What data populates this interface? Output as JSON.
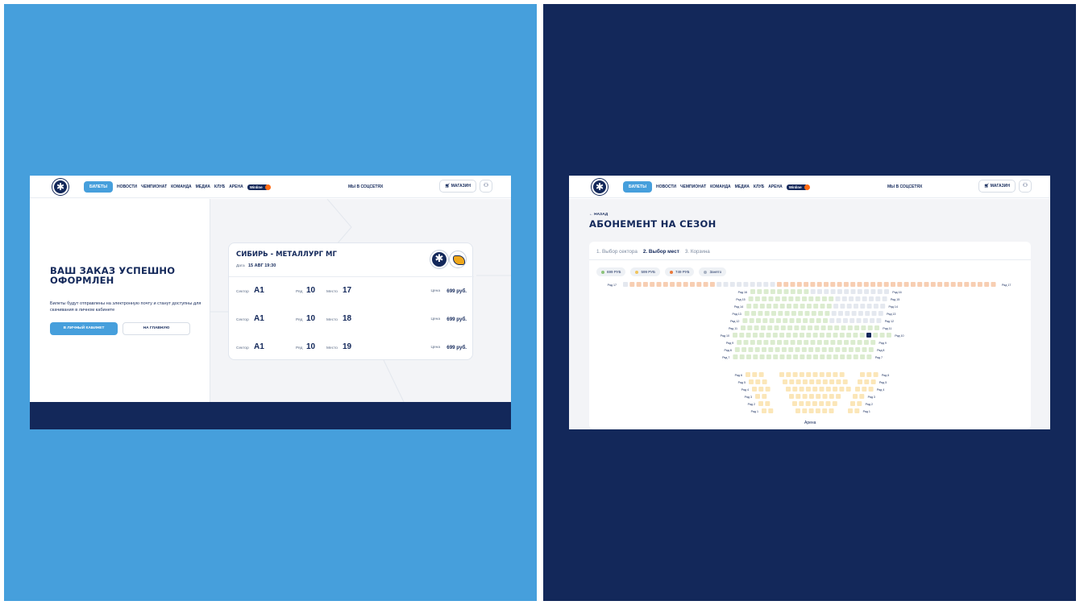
{
  "header": {
    "nav_active": "БИЛЕТЫ",
    "nav_items": [
      "НОВОСТИ",
      "ЧЕМПИОНАТ",
      "КОМАНДА",
      "МЕДИА",
      "КЛУБ",
      "АРЕНА"
    ],
    "winline": "Winline",
    "social": "МЫ В СОЦСЕТЯХ",
    "shop": "МАГАЗИН",
    "user_icon": "user-icon"
  },
  "order": {
    "title": "ВАШ ЗАКАЗ УСПЕШНО ОФОРМЛЕН",
    "text": "Билеты будут отправлены на электронную почту и станут доступны для скачивания в личном кабинете",
    "btn_cabinet": "В ЛИЧНЫЙ КАБИНЕТ",
    "btn_home": "НА ГЛАВНУЮ"
  },
  "ticket": {
    "match": "СИБИРЬ - МЕТАЛЛУРГ МГ",
    "date_label": "Дата",
    "date": "15 АВГ 19:30",
    "sector_label": "Сектор",
    "row_label": "Ряд",
    "seat_label": "Место",
    "price_label": "Цена",
    "rows": [
      {
        "sector": "A1",
        "row": "10",
        "seat": "17",
        "price": "699 руб."
      },
      {
        "sector": "A1",
        "row": "10",
        "seat": "18",
        "price": "699 руб."
      },
      {
        "sector": "A1",
        "row": "10",
        "seat": "19",
        "price": "699 руб."
      }
    ]
  },
  "season": {
    "back": "← НАЗАД",
    "title": "АБОНЕМЕНТ НА СЕЗОН",
    "steps": [
      "1. Выбор сектора",
      "2. Выбор мест",
      "3. Корзина"
    ],
    "legend": [
      {
        "label": "699 РУБ",
        "color": "#8cc37a"
      },
      {
        "label": "599 РУБ",
        "color": "#f0c45c"
      },
      {
        "label": "749 РУБ",
        "color": "#ea7a3c"
      },
      {
        "label": "Занято",
        "color": "#a8b2c2"
      }
    ],
    "arena": "Арена",
    "colors": {
      "green": "#dbeccf",
      "yellow": "#fbe6b8",
      "orange": "#f7ceb2",
      "grey": "#e4e8ef",
      "selected": "#13285a"
    },
    "row_prefix": "Ряд"
  }
}
